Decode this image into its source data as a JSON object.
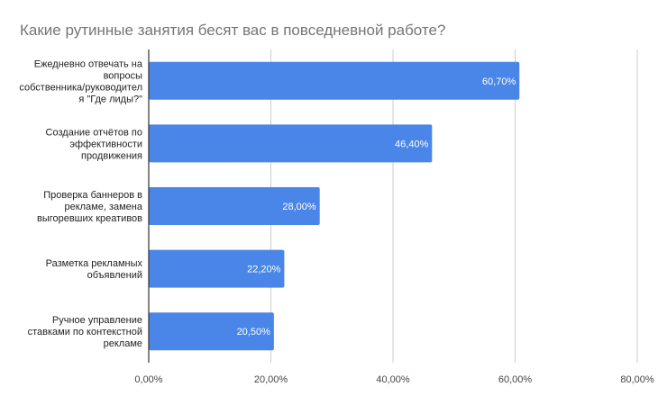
{
  "chart_data": {
    "type": "bar",
    "orientation": "horizontal",
    "title": "Какие рутинные занятия бесят вас в повседневной работе?",
    "xlabel": "",
    "ylabel": "",
    "categories": [
      [
        "Ежедневно отвечать на",
        "вопросы",
        "собственника/руководител",
        "я \"Где лиды?\""
      ],
      [
        "Создание отчётов по",
        "эффективности",
        "продвижения"
      ],
      [
        "Проверка баннеров в",
        "рекламе, замена",
        "выгоревших креативов"
      ],
      [
        "Разметка рекламных",
        "объявлений"
      ],
      [
        "Ручное управление",
        "ставками по контекстной",
        "рекламе"
      ]
    ],
    "values": [
      60.7,
      46.4,
      28.0,
      22.2,
      20.5
    ],
    "value_labels": [
      "60,70%",
      "46,40%",
      "28,00%",
      "22,20%",
      "20,50%"
    ],
    "xlim": [
      0,
      80
    ],
    "ticks": [
      0,
      20,
      40,
      60,
      80
    ],
    "tick_labels": [
      "0,00%",
      "20,00%",
      "40,00%",
      "60,00%",
      "80,00%"
    ],
    "grid": true,
    "legend": "none",
    "colors": {
      "bar": "#4a86e8",
      "grid": "#cccccc",
      "axis": "#333333",
      "title": "#757575"
    }
  }
}
